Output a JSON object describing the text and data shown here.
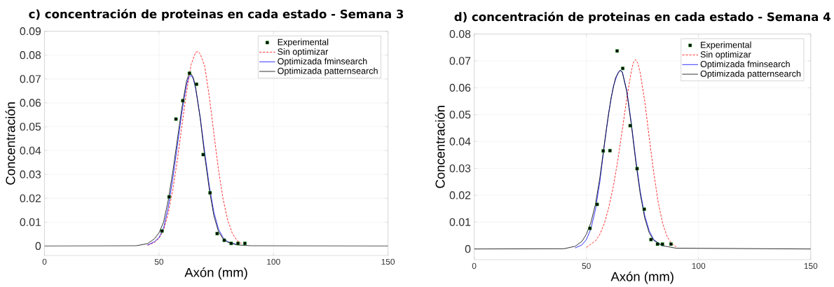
{
  "chart_data": [
    {
      "type": "line",
      "title": "c) concentración de proteinas  en cada estado - Semana 3",
      "xlabel": "Axón (mm)",
      "ylabel": "Concentración",
      "xlim": [
        0,
        150
      ],
      "ylim": [
        -0.004,
        0.09
      ],
      "xticks": [
        0,
        50,
        100,
        150
      ],
      "yticks": [
        0,
        0.01,
        0.02,
        0.03,
        0.04,
        0.05,
        0.06,
        0.07,
        0.08,
        0.09
      ],
      "grid": true,
      "legend": "top right",
      "series": [
        {
          "name": "Experimental",
          "type": "scatter",
          "marker": "square",
          "color": "#000000",
          "x": [
            51.3,
            54.4,
            57.4,
            60.4,
            63.3,
            66.4,
            69.3,
            72.3,
            75.4,
            78.5,
            81.5,
            84.5,
            87.5
          ],
          "values": [
            0.0063,
            0.0206,
            0.0532,
            0.0609,
            0.0724,
            0.0678,
            0.0383,
            0.0223,
            0.0052,
            0.0024,
            0.0011,
            0.0011,
            0.0011
          ]
        },
        {
          "name": "Sin optimizar",
          "line_style": "dashed",
          "color": "#ff0000",
          "x": [
            45,
            48,
            50,
            52,
            54,
            56,
            58,
            60,
            62,
            64,
            66,
            67,
            68,
            70,
            72,
            74,
            76,
            78,
            80,
            82,
            84,
            86
          ],
          "values": [
            0.0003,
            0.0015,
            0.0032,
            0.0066,
            0.0136,
            0.0234,
            0.036,
            0.0503,
            0.0643,
            0.076,
            0.0812,
            0.0815,
            0.0805,
            0.0752,
            0.0624,
            0.0469,
            0.0318,
            0.0196,
            0.0108,
            0.0054,
            0.0024,
            0.001
          ]
        },
        {
          "name": "Optimizada fminsearch",
          "line_style": "solid",
          "color": "#0000ff",
          "x": [
            45,
            48,
            50,
            52,
            54,
            56,
            58,
            60,
            62,
            63,
            64,
            65,
            66,
            68,
            70,
            72,
            74,
            76,
            78,
            80,
            84
          ],
          "values": [
            0.0004,
            0.0018,
            0.0035,
            0.0075,
            0.016,
            0.028,
            0.042,
            0.056,
            0.0675,
            0.0708,
            0.0715,
            0.07,
            0.066,
            0.054,
            0.039,
            0.025,
            0.014,
            0.007,
            0.0035,
            0.0018,
            0.0006
          ]
        },
        {
          "name": "Optimizada patternsearch",
          "line_style": "solid",
          "color": "#000000",
          "x": [
            0,
            40,
            45,
            48,
            50,
            52,
            54,
            56,
            58,
            60,
            62,
            63,
            64,
            65,
            66,
            68,
            70,
            72,
            74,
            76,
            78,
            80,
            84,
            90,
            150
          ],
          "values": [
            0,
            0.0001,
            0.001,
            0.003,
            0.0055,
            0.01,
            0.019,
            0.031,
            0.0445,
            0.058,
            0.069,
            0.0718,
            0.0722,
            0.0705,
            0.0665,
            0.0535,
            0.0375,
            0.0235,
            0.0125,
            0.006,
            0.003,
            0.0016,
            0.0005,
            0.0001,
            0
          ]
        }
      ]
    },
    {
      "type": "line",
      "title": "d) concentración de proteinas  en cada estado - Semana 4",
      "xlabel": "Axón (mm)",
      "ylabel": "Concentración",
      "xlim": [
        0,
        150
      ],
      "ylim": [
        -0.004,
        0.08
      ],
      "xticks": [
        0,
        50,
        100,
        150
      ],
      "yticks": [
        0,
        0.01,
        0.02,
        0.03,
        0.04,
        0.05,
        0.06,
        0.07,
        0.08
      ],
      "grid": true,
      "legend": "top right",
      "series": [
        {
          "name": "Experimental",
          "type": "scatter",
          "marker": "square",
          "color": "#000000",
          "x": [
            51.6,
            54.8,
            57.5,
            60.5,
            63.7,
            66.2,
            69.5,
            72.6,
            75.8,
            78.8,
            81.7,
            83.9,
            87.7
          ],
          "values": [
            0.0077,
            0.0166,
            0.0365,
            0.0366,
            0.0737,
            0.0672,
            0.0459,
            0.0299,
            0.0148,
            0.0035,
            0.0018,
            0.0018,
            0.0018
          ]
        },
        {
          "name": "Sin optimizar",
          "line_style": "dashed",
          "color": "#ff0000",
          "x": [
            50,
            54,
            56,
            58,
            60,
            62,
            64,
            66,
            68,
            70,
            71,
            72,
            73,
            74,
            76,
            78,
            80,
            82,
            84,
            86,
            88,
            90
          ],
          "values": [
            0.0006,
            0.003,
            0.0054,
            0.0095,
            0.0155,
            0.0232,
            0.033,
            0.0443,
            0.056,
            0.066,
            0.0695,
            0.0705,
            0.069,
            0.0655,
            0.055,
            0.0415,
            0.0285,
            0.0175,
            0.0095,
            0.0046,
            0.002,
            0.0008
          ]
        },
        {
          "name": "Optimizada fminsearch",
          "line_style": "solid",
          "color": "#0000ff",
          "x": [
            45,
            48,
            50,
            52,
            54,
            56,
            58,
            60,
            62,
            64,
            65,
            66,
            68,
            70,
            72,
            74,
            76,
            78,
            80,
            84
          ],
          "values": [
            0.0004,
            0.0015,
            0.0035,
            0.0075,
            0.0145,
            0.025,
            0.0385,
            0.051,
            0.0605,
            0.0655,
            0.0665,
            0.066,
            0.059,
            0.047,
            0.0335,
            0.0215,
            0.0125,
            0.0068,
            0.0035,
            0.001
          ]
        },
        {
          "name": "Optimizada patternsearch",
          "line_style": "solid",
          "color": "#000000",
          "x": [
            0,
            40,
            45,
            48,
            50,
            52,
            54,
            56,
            58,
            59,
            61,
            63,
            65,
            66,
            68,
            70,
            72,
            74,
            76,
            78,
            80,
            84,
            90,
            150
          ],
          "values": [
            0,
            0.0001,
            0.001,
            0.0028,
            0.0055,
            0.0098,
            0.0165,
            0.0265,
            0.039,
            0.0452,
            0.0562,
            0.0638,
            0.0665,
            0.0658,
            0.0585,
            0.0465,
            0.0325,
            0.0205,
            0.0115,
            0.006,
            0.0032,
            0.0012,
            0.0003,
            0
          ]
        }
      ]
    }
  ]
}
